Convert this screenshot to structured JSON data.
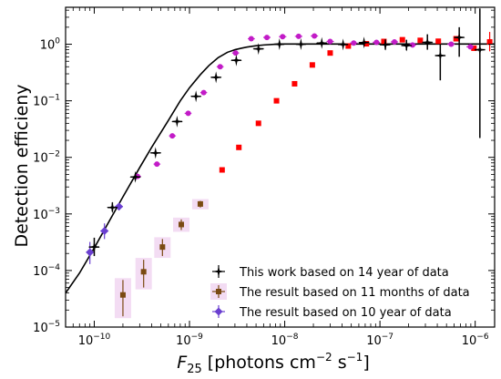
{
  "chart_data": {
    "type": "scatter",
    "xlabel_parts": {
      "main": "F",
      "sub": "25",
      "rest1": " [photons cm",
      "exp1": "−2",
      "rest2": " s",
      "exp2": "−1",
      "rest3": "]"
    },
    "ylabel": "Detection efficieny",
    "x_scale": "log",
    "y_scale": "log",
    "xlim": [
      5e-11,
      1.6e-06
    ],
    "ylim": [
      1e-05,
      4.5
    ],
    "x_ticks": [
      {
        "value": 1e-10,
        "base": "10",
        "exp": "−10"
      },
      {
        "value": 1e-09,
        "base": "10",
        "exp": "−9"
      },
      {
        "value": 1e-08,
        "base": "10",
        "exp": "−8"
      },
      {
        "value": 1e-07,
        "base": "10",
        "exp": "−7"
      },
      {
        "value": 1e-06,
        "base": "10",
        "exp": "−6"
      }
    ],
    "y_ticks": [
      {
        "value": 1e-05,
        "base": "10",
        "exp": "−5"
      },
      {
        "value": 0.0001,
        "base": "10",
        "exp": "−4"
      },
      {
        "value": 0.001,
        "base": "10",
        "exp": "−3"
      },
      {
        "value": 0.01,
        "base": "10",
        "exp": "−2"
      },
      {
        "value": 0.1,
        "base": "10",
        "exp": "−1"
      },
      {
        "value": 1,
        "base": "10",
        "exp": "0"
      }
    ],
    "legend_position": "lower-right",
    "fit_curve": {
      "color": "#000000",
      "x": [
        5e-11,
        7e-11,
        1e-10,
        1.5e-10,
        2e-10,
        3e-10,
        4e-10,
        6e-10,
        8e-10,
        1e-09,
        1.3e-09,
        1.6e-09,
        2e-09,
        2.5e-09,
        3e-09,
        3.5e-09,
        4e-09,
        5e-09,
        6e-09,
        8e-09,
        1e-08,
        1.5e-08,
        2e-08,
        5e-08,
        1e-07,
        1e-06,
        1.6e-06
      ],
      "y": [
        4e-05,
        9e-05,
        0.00025,
        0.00085,
        0.002,
        0.0066,
        0.015,
        0.045,
        0.1,
        0.17,
        0.29,
        0.42,
        0.58,
        0.72,
        0.8,
        0.85,
        0.89,
        0.94,
        0.97,
        1.0,
        1.01,
        1.01,
        1.01,
        1.01,
        1.01,
        1.01,
        1.01
      ]
    },
    "series": [
      {
        "name": "This work based on 14 year of data",
        "color": "#000000",
        "marker": "star",
        "points": [
          {
            "x": 1e-10,
            "y": 0.00026,
            "ylo": 0.00018,
            "yhi": 0.00038,
            "xlo": 8.8e-11,
            "xhi": 1.13e-10
          },
          {
            "x": 1.55e-10,
            "y": 0.0013,
            "ylo": 0.0011,
            "yhi": 0.0016,
            "xlo": 1.38e-10,
            "xhi": 1.75e-10
          },
          {
            "x": 2.7e-10,
            "y": 0.0045,
            "ylo": 0.004,
            "yhi": 0.0051,
            "xlo": 2.4e-10,
            "xhi": 3.05e-10
          },
          {
            "x": 4.4e-10,
            "y": 0.012,
            "xlo": 3.9e-10,
            "xhi": 5e-10
          },
          {
            "x": 7.4e-10,
            "y": 0.043,
            "xlo": 6.6e-10,
            "xhi": 8.4e-10
          },
          {
            "x": 1.17e-09,
            "y": 0.12,
            "xlo": 1.04e-09,
            "xhi": 1.32e-09
          },
          {
            "x": 1.9e-09,
            "y": 0.26,
            "xlo": 1.68e-09,
            "xhi": 2.15e-09
          },
          {
            "x": 3.1e-09,
            "y": 0.52,
            "xlo": 2.75e-09,
            "xhi": 3.5e-09
          },
          {
            "x": 5.3e-09,
            "y": 0.83,
            "xlo": 4.7e-09,
            "xhi": 6e-09
          },
          {
            "x": 8.8e-09,
            "y": 1.0,
            "xlo": 7.8e-09,
            "xhi": 9.9e-09
          },
          {
            "x": 1.48e-08,
            "y": 1.0,
            "xlo": 1.31e-08,
            "xhi": 1.67e-08
          },
          {
            "x": 2.45e-08,
            "y": 1.05,
            "xlo": 2.17e-08,
            "xhi": 2.77e-08
          },
          {
            "x": 4.1e-08,
            "y": 0.99,
            "xlo": 3.63e-08,
            "xhi": 4.62e-08
          },
          {
            "x": 6.8e-08,
            "y": 1.07,
            "xlo": 6.02e-08,
            "xhi": 7.68e-08
          },
          {
            "x": 1.14e-07,
            "y": 0.98,
            "ylo": 0.8,
            "yhi": 1.22,
            "xlo": 1e-07,
            "xhi": 1.28e-07
          },
          {
            "x": 1.9e-07,
            "y": 0.95,
            "ylo": 0.78,
            "yhi": 1.2,
            "xlo": 1.68e-07,
            "xhi": 2.15e-07
          },
          {
            "x": 3.15e-07,
            "y": 1.08,
            "ylo": 0.8,
            "yhi": 1.5,
            "xlo": 2.79e-07,
            "xhi": 3.56e-07
          },
          {
            "x": 4.3e-07,
            "y": 0.63,
            "ylo": 0.23,
            "yhi": 1.0,
            "xlo": 3.8e-07,
            "xhi": 4.86e-07
          },
          {
            "x": 6.8e-07,
            "y": 1.32,
            "ylo": 0.6,
            "yhi": 2.0,
            "xlo": 6.02e-07,
            "xhi": 7.68e-07
          },
          {
            "x": 1.12e-06,
            "y": 0.8,
            "ylo": 0.022,
            "yhi": 4.3,
            "xlo": 9.9e-07,
            "xhi": 1.27e-06
          }
        ]
      },
      {
        "name": "The result based on 11 months of data",
        "color": "#7a4a12",
        "halo": "#f3dcf3",
        "marker": "square",
        "points": [
          {
            "x": 2e-10,
            "y": 3.7e-05,
            "ylo": 1.55e-05,
            "yhi": 6.8e-05
          },
          {
            "x": 3.3e-10,
            "y": 9.5e-05,
            "ylo": 5e-05,
            "yhi": 0.000155
          },
          {
            "x": 5.2e-10,
            "y": 0.00026,
            "ylo": 0.00018,
            "yhi": 0.00036
          },
          {
            "x": 8.2e-10,
            "y": 0.00065,
            "ylo": 0.00052,
            "yhi": 0.0008
          },
          {
            "x": 1.3e-09,
            "y": 0.0015,
            "ylo": 0.0013,
            "yhi": 0.0017
          }
        ]
      },
      {
        "name": "The result based on 10 year of data",
        "color": "#6a3fd0",
        "marker": "diamond",
        "points": [
          {
            "x": 9e-11,
            "y": 0.00021,
            "ylo": 0.00013,
            "yhi": 0.00032,
            "xlo": 8.2e-11,
            "xhi": 9.9e-11
          },
          {
            "x": 1.28e-10,
            "y": 0.0005,
            "ylo": 0.00036,
            "yhi": 0.00068,
            "xlo": 1.16e-10,
            "xhi": 1.41e-10
          },
          {
            "x": 1.82e-10,
            "y": 0.00135,
            "xlo": 1.65e-10,
            "xhi": 2e-10
          }
        ]
      },
      {
        "name": "",
        "color": "#ff0000",
        "marker": "square",
        "points": [
          {
            "x": 2.2e-09,
            "y": 0.006
          },
          {
            "x": 3.3e-09,
            "y": 0.015
          },
          {
            "x": 5.3e-09,
            "y": 0.04
          },
          {
            "x": 8.2e-09,
            "y": 0.1
          },
          {
            "x": 1.27e-08,
            "y": 0.2
          },
          {
            "x": 1.95e-08,
            "y": 0.43
          },
          {
            "x": 3e-08,
            "y": 0.7
          },
          {
            "x": 4.65e-08,
            "y": 0.93
          },
          {
            "x": 7.2e-08,
            "y": 1.02
          },
          {
            "x": 1.1e-07,
            "y": 1.12
          },
          {
            "x": 1.72e-07,
            "y": 1.2
          },
          {
            "x": 2.65e-07,
            "y": 1.17
          },
          {
            "x": 4.1e-07,
            "y": 1.13
          },
          {
            "x": 6.3e-07,
            "y": 1.25
          },
          {
            "x": 9.7e-07,
            "y": 0.85
          },
          {
            "x": 1.42e-06,
            "y": 1.1,
            "ylo": 0.75,
            "yhi": 1.65
          }
        ]
      },
      {
        "name": "",
        "color": "#c21bc7",
        "marker": "circle",
        "points": [
          {
            "x": 2.85e-10,
            "y": 0.0046,
            "xlo": 2.65e-10,
            "xhi": 3.1e-10
          },
          {
            "x": 4.55e-10,
            "y": 0.0076,
            "xlo": 4.2e-10,
            "xhi": 4.95e-10
          },
          {
            "x": 6.6e-10,
            "y": 0.024,
            "xlo": 6.1e-10,
            "xhi": 7.2e-10
          },
          {
            "x": 9.7e-10,
            "y": 0.06,
            "xlo": 8.9e-10,
            "xhi": 1.05e-09
          },
          {
            "x": 1.41e-09,
            "y": 0.14,
            "xlo": 1.3e-09,
            "xhi": 1.53e-09
          },
          {
            "x": 2.1e-09,
            "y": 0.4,
            "xlo": 1.93e-09,
            "xhi": 2.28e-09
          },
          {
            "x": 3.05e-09,
            "y": 0.7,
            "xlo": 2.8e-09,
            "xhi": 3.32e-09
          },
          {
            "x": 4.45e-09,
            "y": 1.25,
            "xlo": 4.1e-09,
            "xhi": 4.85e-09
          },
          {
            "x": 6.5e-09,
            "y": 1.32,
            "xlo": 5.95e-09,
            "xhi": 7.1e-09
          },
          {
            "x": 9.5e-09,
            "y": 1.36,
            "xlo": 8.7e-09,
            "xhi": 1.04e-08
          },
          {
            "x": 1.4e-08,
            "y": 1.38,
            "xlo": 1.28e-08,
            "xhi": 1.53e-08
          },
          {
            "x": 2.05e-08,
            "y": 1.4,
            "xlo": 1.88e-08,
            "xhi": 2.24e-08
          },
          {
            "x": 3e-08,
            "y": 1.12,
            "xlo": 2.75e-08,
            "xhi": 3.28e-08
          },
          {
            "x": 5.3e-08,
            "y": 1.05,
            "xlo": 4.85e-08,
            "xhi": 5.8e-08
          },
          {
            "x": 9.2e-08,
            "y": 1.08,
            "xlo": 8.4e-08,
            "xhi": 1e-07
          },
          {
            "x": 1.42e-07,
            "y": 1.1,
            "xlo": 1.3e-07,
            "xhi": 1.55e-07
          },
          {
            "x": 2.2e-07,
            "y": 0.97,
            "xlo": 2e-07,
            "xhi": 2.4e-07
          },
          {
            "x": 5.6e-07,
            "y": 1.0,
            "xlo": 5.1e-07,
            "xhi": 6.1e-07
          },
          {
            "x": 8.9e-07,
            "y": 0.9,
            "xlo": 8.1e-07,
            "xhi": 9.7e-07
          }
        ]
      }
    ]
  }
}
